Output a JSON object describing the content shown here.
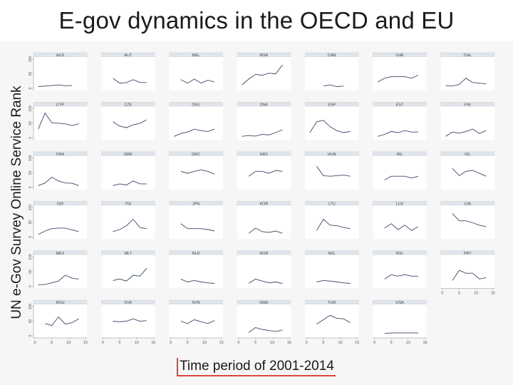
{
  "title": "E-gov dynamics in the OECD and EU",
  "chart_data": {
    "type": "line",
    "title": "E-gov dynamics in the OECD and EU",
    "ylabel": "UN e-Gov Survey Online Service Rank",
    "xlabel": "Time period of 2001-2014",
    "xlim": [
      0,
      15
    ],
    "ylim": [
      0,
      100
    ],
    "xticks": [
      "0",
      "5",
      "10",
      "15"
    ],
    "yticks": [
      "0",
      "50",
      "100"
    ],
    "grid": false,
    "x": [
      1,
      3,
      5,
      7,
      9,
      11,
      13
    ],
    "panels": [
      {
        "name": "AUS",
        "values": [
          6,
          8,
          10,
          12,
          9,
          10,
          null
        ]
      },
      {
        "name": "AUT",
        "values": [
          null,
          35,
          18,
          20,
          30,
          20,
          20
        ]
      },
      {
        "name": "BEL",
        "values": [
          null,
          30,
          18,
          32,
          18,
          28,
          22
        ]
      },
      {
        "name": "BGR",
        "values": [
          12,
          32,
          48,
          45,
          52,
          50,
          80
        ]
      },
      {
        "name": "CAN",
        "values": [
          5,
          null,
          8,
          12,
          6,
          8,
          null
        ]
      },
      {
        "name": "CHE",
        "values": [
          22,
          35,
          40,
          40,
          40,
          35,
          45
        ]
      },
      {
        "name": "CHL",
        "values": [
          10,
          8,
          14,
          35,
          20,
          18,
          15
        ]
      },
      {
        "name": "CYP",
        "values": [
          30,
          85,
          52,
          50,
          48,
          42,
          48
        ]
      },
      {
        "name": "CZE",
        "values": [
          null,
          55,
          40,
          35,
          45,
          50,
          62
        ]
      },
      {
        "name": "DEU",
        "values": [
          5,
          15,
          20,
          30,
          25,
          22,
          30
        ]
      },
      {
        "name": "DNK",
        "values": [
          5,
          8,
          6,
          12,
          10,
          18,
          28
        ]
      },
      {
        "name": "ESP",
        "values": [
          18,
          55,
          60,
          38,
          25,
          18,
          22
        ]
      },
      {
        "name": "EST",
        "values": [
          5,
          12,
          22,
          18,
          25,
          20,
          20
        ]
      },
      {
        "name": "FIN",
        "values": [
          5,
          20,
          16,
          22,
          30,
          15,
          25
        ]
      },
      {
        "name": "FRA",
        "values": [
          6,
          15,
          35,
          22,
          15,
          14,
          6
        ]
      },
      {
        "name": "GBR",
        "values": [
          null,
          6,
          12,
          8,
          22,
          12,
          12
        ]
      },
      {
        "name": "GRC",
        "values": [
          null,
          55,
          48,
          55,
          60,
          55,
          45
        ]
      },
      {
        "name": "HRV",
        "values": [
          null,
          38,
          55,
          55,
          48,
          58,
          55
        ]
      },
      {
        "name": "HUN",
        "values": [
          null,
          72,
          40,
          38,
          40,
          42,
          38
        ]
      },
      {
        "name": "IRL",
        "values": [
          null,
          25,
          38,
          38,
          38,
          32,
          38
        ]
      },
      {
        "name": "ISL",
        "values": [
          null,
          65,
          40,
          55,
          58,
          48,
          38
        ]
      },
      {
        "name": "ISR",
        "values": [
          8,
          20,
          28,
          30,
          30,
          24,
          18
        ]
      },
      {
        "name": "ITA",
        "values": [
          null,
          18,
          25,
          38,
          60,
          32,
          28
        ]
      },
      {
        "name": "JPN",
        "values": [
          null,
          45,
          28,
          28,
          28,
          25,
          20
        ]
      },
      {
        "name": "KOR",
        "values": [
          null,
          12,
          30,
          18,
          15,
          20,
          12
        ]
      },
      {
        "name": "LTU",
        "values": [
          null,
          22,
          60,
          40,
          38,
          32,
          28
        ]
      },
      {
        "name": "LUX",
        "values": [
          null,
          30,
          45,
          25,
          40,
          22,
          35
        ]
      },
      {
        "name": "LVA",
        "values": [
          null,
          80,
          55,
          55,
          48,
          40,
          35
        ]
      },
      {
        "name": "MEX",
        "values": [
          5,
          6,
          12,
          18,
          38,
          28,
          25
        ]
      },
      {
        "name": "MLT",
        "values": [
          null,
          20,
          25,
          18,
          38,
          35,
          62
        ]
      },
      {
        "name": "NLD",
        "values": [
          null,
          25,
          15,
          20,
          15,
          12,
          10
        ]
      },
      {
        "name": "NOR",
        "values": [
          null,
          10,
          25,
          18,
          12,
          15,
          10
        ]
      },
      {
        "name": "NZL",
        "values": [
          null,
          15,
          20,
          18,
          15,
          12,
          10
        ]
      },
      {
        "name": "POL",
        "values": [
          null,
          25,
          40,
          35,
          40,
          35,
          35
        ]
      },
      {
        "name": "PRT",
        "values": [
          null,
          20,
          55,
          45,
          45,
          25,
          30
        ]
      },
      {
        "name": "ROU",
        "values": [
          null,
          42,
          35,
          65,
          40,
          45,
          58
        ]
      },
      {
        "name": "SVK",
        "values": [
          null,
          50,
          48,
          50,
          58,
          50,
          52
        ]
      },
      {
        "name": "SVN",
        "values": [
          null,
          50,
          42,
          55,
          48,
          42,
          52
        ]
      },
      {
        "name": "SWE",
        "values": [
          null,
          12,
          28,
          22,
          18,
          15,
          20
        ]
      },
      {
        "name": "TUR",
        "values": [
          null,
          40,
          55,
          70,
          60,
          58,
          45
        ]
      },
      {
        "name": "USA",
        "values": [
          null,
          8,
          10,
          10,
          10,
          10,
          10
        ]
      }
    ]
  }
}
